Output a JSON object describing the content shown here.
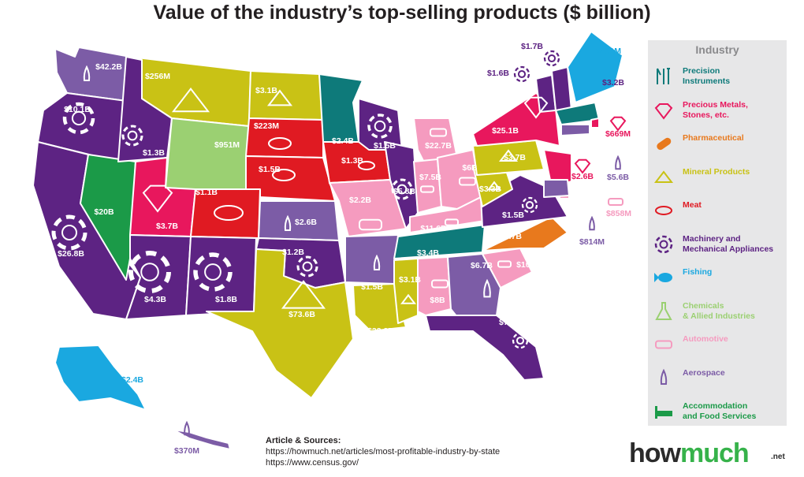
{
  "title": "Value of the industry’s top-selling products ($ billion)",
  "colors": {
    "precision": "#0e7a7a",
    "precious": "#e8175d",
    "pharma": "#e8791d",
    "mineral": "#c9c215",
    "meat": "#e01a22",
    "machinery": "#5d2383",
    "fishing": "#1aa8e0",
    "chemicals": "#9bd072",
    "automotive": "#f59bbf",
    "aerospace": "#7c5ca6",
    "accommodation": "#1b9a48"
  },
  "legend": {
    "title": "Industry",
    "items": [
      {
        "label_1": "Precision",
        "label_2": "Instruments",
        "color": "#0e7a7a",
        "icon": "precision-instruments-icon"
      },
      {
        "label_1": "Precious Metals,",
        "label_2": "Stones, etc.",
        "color": "#e8175d",
        "icon": "diamond-icon"
      },
      {
        "label_1": "Pharmaceutical",
        "label_2": "",
        "color": "#e8791d",
        "icon": "pill-icon"
      },
      {
        "label_1": "Mineral Products",
        "label_2": "",
        "color": "#c9c215",
        "icon": "mineral-icon"
      },
      {
        "label_1": "Meat",
        "label_2": "",
        "color": "#e01a22",
        "icon": "steak-icon"
      },
      {
        "label_1": "Machinery and",
        "label_2": "Mechanical Appliances",
        "color": "#5d2383",
        "icon": "gear-icon"
      },
      {
        "label_1": "Fishing",
        "label_2": "",
        "color": "#1aa8e0",
        "icon": "fish-icon"
      },
      {
        "label_1": "Chemicals",
        "label_2": "& Allied Industries",
        "color": "#9bd072",
        "icon": "flask-icon"
      },
      {
        "label_1": "Automotive",
        "label_2": "",
        "color": "#f59bbf",
        "icon": "car-icon"
      },
      {
        "label_1": "Aerospace",
        "label_2": "",
        "color": "#7c5ca6",
        "icon": "rocket-icon"
      },
      {
        "label_1": "Accommodation",
        "label_2": "and Food Services",
        "color": "#1b9a48",
        "icon": "bed-icon"
      }
    ]
  },
  "states": [
    {
      "state": "WA",
      "industry": "aerospace",
      "value": "$42.2B"
    },
    {
      "state": "OR",
      "industry": "machinery",
      "value": "$10.1B"
    },
    {
      "state": "CA",
      "industry": "machinery",
      "value": "$26.8B"
    },
    {
      "state": "NV",
      "industry": "accommodation",
      "value": "$20B"
    },
    {
      "state": "ID",
      "industry": "machinery",
      "value": "$1.3B"
    },
    {
      "state": "MT",
      "industry": "mineral",
      "value": "$256M"
    },
    {
      "state": "WY",
      "industry": "chemicals",
      "value": "$951M"
    },
    {
      "state": "UT",
      "industry": "precious",
      "value": "$3.7B"
    },
    {
      "state": "AZ",
      "industry": "machinery",
      "value": "$4.3B"
    },
    {
      "state": "CO",
      "industry": "meat",
      "value": "$1.1B"
    },
    {
      "state": "NM",
      "industry": "machinery",
      "value": "$1.8B"
    },
    {
      "state": "ND",
      "industry": "mineral",
      "value": "$3.1B"
    },
    {
      "state": "SD",
      "industry": "meat",
      "value": "$223M"
    },
    {
      "state": "NE",
      "industry": "meat",
      "value": "$1.5B"
    },
    {
      "state": "KS",
      "industry": "aerospace",
      "value": "$2.6B"
    },
    {
      "state": "OK",
      "industry": "machinery",
      "value": "$1.2B"
    },
    {
      "state": "TX",
      "industry": "mineral",
      "value": "$73.6B"
    },
    {
      "state": "MN",
      "industry": "precision",
      "value": "$2.4B"
    },
    {
      "state": "IA",
      "industry": "meat",
      "value": "$1.3B"
    },
    {
      "state": "MO",
      "industry": "automotive",
      "value": "$2.2B"
    },
    {
      "state": "AR",
      "industry": "aerospace",
      "value": "$1.5B"
    },
    {
      "state": "LA",
      "industry": "mineral",
      "value": "$23.3B"
    },
    {
      "state": "WI",
      "industry": "machinery",
      "value": "$1.5B"
    },
    {
      "state": "IL",
      "industry": "machinery",
      "value": "$5.8B"
    },
    {
      "state": "MI",
      "industry": "automotive",
      "value": "$22.7B"
    },
    {
      "state": "IN",
      "industry": "automotive",
      "value": "$7.5B"
    },
    {
      "state": "OH",
      "industry": "automotive",
      "value": "$6B"
    },
    {
      "state": "KY",
      "industry": "automotive",
      "value": "$11.6B"
    },
    {
      "state": "TN",
      "industry": "precision",
      "value": "$3.4B"
    },
    {
      "state": "MS",
      "industry": "mineral",
      "value": "$3.1B"
    },
    {
      "state": "AL",
      "industry": "automotive",
      "value": "$8B"
    },
    {
      "state": "GA",
      "industry": "aerospace",
      "value": "$6.7B"
    },
    {
      "state": "FL",
      "industry": "machinery",
      "value": "$7.6B"
    },
    {
      "state": "SC",
      "industry": "automotive",
      "value": "$10.1B"
    },
    {
      "state": "NC",
      "industry": "pharma",
      "value": "$3.7B"
    },
    {
      "state": "VA",
      "industry": "machinery",
      "value": "$1.5B"
    },
    {
      "state": "WV",
      "industry": "mineral",
      "value": "$3.3B"
    },
    {
      "state": "PA",
      "industry": "mineral",
      "value": "$3.7B"
    },
    {
      "state": "NY",
      "industry": "precious",
      "value": "$25.1B"
    },
    {
      "state": "VT",
      "industry": "machinery",
      "value": "$1.6B"
    },
    {
      "state": "NH",
      "industry": "machinery",
      "value": "$1.7B"
    },
    {
      "state": "ME",
      "industry": "fishing",
      "value": "$431M"
    },
    {
      "state": "MA",
      "industry": "precision",
      "value": "$3.2B"
    },
    {
      "state": "RI",
      "industry": "precious",
      "value": "$669M"
    },
    {
      "state": "CT",
      "industry": "aerospace",
      "value": "$5.6B"
    },
    {
      "state": "NJ",
      "industry": "precious",
      "value": "$2.6B"
    },
    {
      "state": "DE",
      "industry": "automotive",
      "value": "$858M"
    },
    {
      "state": "MD",
      "industry": "aerospace",
      "value": "$814M"
    },
    {
      "state": "AK",
      "industry": "fishing",
      "value": "$2.4B"
    },
    {
      "state": "HI",
      "industry": "aerospace",
      "value": "$370M"
    }
  ],
  "sources": {
    "title": "Article & Sources:",
    "line1": "https://howmuch.net/articles/most-profitable-industry-by-state",
    "line2": "https://www.census.gov/"
  },
  "logo": {
    "part1": "how",
    "part2": "much",
    "suffix": ".net"
  }
}
